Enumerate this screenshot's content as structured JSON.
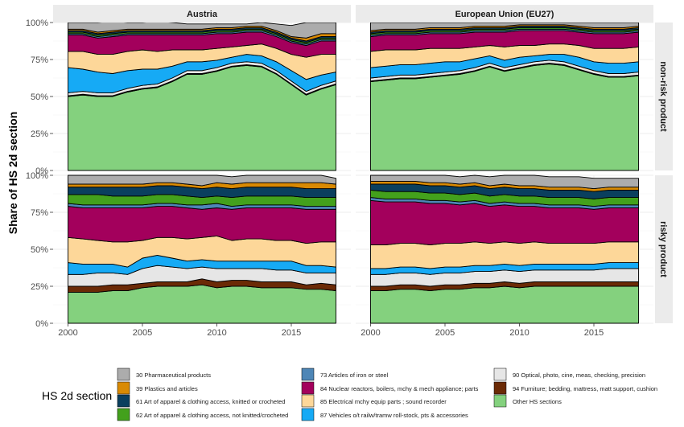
{
  "chart_data": {
    "type": "area",
    "stacked": true,
    "normalized": true,
    "ylabel": "Share of HS 2d section",
    "xlabel": "",
    "xlim": [
      1999,
      2019
    ],
    "ylim": [
      0,
      1
    ],
    "x_ticks": [
      2000,
      2005,
      2010,
      2015
    ],
    "y_ticks": [
      "0%",
      "25%",
      "50%",
      "75%",
      "100%"
    ],
    "grid": true,
    "facet_columns": [
      "Austria",
      "European Union (EU27)"
    ],
    "facet_rows": [
      "non-risk product",
      "risky product"
    ],
    "years": [
      2000,
      2001,
      2002,
      2003,
      2004,
      2005,
      2006,
      2007,
      2008,
      2009,
      2010,
      2011,
      2012,
      2013,
      2014,
      2015,
      2016,
      2017,
      2018
    ],
    "legend": {
      "title": "HS 2d section",
      "position": "bottom",
      "items": [
        {
          "key": "other",
          "label": "Other HS sections",
          "color": "#84D17E"
        },
        {
          "key": "hs94",
          "label": "94 Furniture; bedding, mattress, matt support, cushion",
          "color": "#6B2A06"
        },
        {
          "key": "hs90",
          "label": "90 Optical, photo, cine, meas, checking, precision",
          "color": "#E6E6E6"
        },
        {
          "key": "hs87",
          "label": "87 Vehicles o/t railw/tramw roll-stock, pts & accessories",
          "color": "#16AAF5"
        },
        {
          "key": "hs85",
          "label": "85 Electrical mchy equip parts ; sound recorder",
          "color": "#FDD799"
        },
        {
          "key": "hs84",
          "label": "84 Nuclear reactors, boilers, mchy & mech appliance; parts",
          "color": "#A3005C"
        },
        {
          "key": "hs73",
          "label": "73 Articles of iron or steel",
          "color": "#4E86B6"
        },
        {
          "key": "hs62",
          "label": "62 Art of apparel & clothing access, not knitted/crocheted",
          "color": "#43A11C"
        },
        {
          "key": "hs61",
          "label": "61 Art of apparel & clothing access, knitted or crocheted",
          "color": "#0A3F5E"
        },
        {
          "key": "hs39",
          "label": "39 Plastics and articles",
          "color": "#D98A03"
        },
        {
          "key": "hs30",
          "label": "30 Pharmaceutical products",
          "color": "#ACACAC"
        }
      ],
      "display_order": [
        "hs30",
        "hs39",
        "hs61",
        "hs62",
        "hs73",
        "hs84",
        "hs85",
        "hs87",
        "hs90",
        "hs94",
        "other"
      ]
    },
    "panels": [
      {
        "country": "Austria",
        "row": "non-risk product",
        "series": {
          "other": [
            0.5,
            0.51,
            0.5,
            0.5,
            0.53,
            0.55,
            0.56,
            0.6,
            0.65,
            0.65,
            0.67,
            0.7,
            0.71,
            0.7,
            0.65,
            0.58,
            0.51,
            0.55,
            0.58
          ],
          "hs94": [
            0.005,
            0.005,
            0.005,
            0.005,
            0.005,
            0.005,
            0.005,
            0.005,
            0.005,
            0.005,
            0.005,
            0.005,
            0.005,
            0.005,
            0.005,
            0.005,
            0.005,
            0.005,
            0.005
          ],
          "hs90": [
            0.02,
            0.02,
            0.02,
            0.02,
            0.02,
            0.02,
            0.02,
            0.02,
            0.02,
            0.02,
            0.02,
            0.02,
            0.02,
            0.02,
            0.02,
            0.02,
            0.02,
            0.02,
            0.02
          ],
          "hs87": [
            0.17,
            0.15,
            0.14,
            0.13,
            0.12,
            0.11,
            0.1,
            0.08,
            0.06,
            0.06,
            0.05,
            0.04,
            0.05,
            0.05,
            0.06,
            0.07,
            0.08,
            0.07,
            0.06
          ],
          "hs85": [
            0.11,
            0.12,
            0.12,
            0.13,
            0.13,
            0.13,
            0.12,
            0.11,
            0.08,
            0.08,
            0.08,
            0.07,
            0.06,
            0.08,
            0.09,
            0.11,
            0.15,
            0.14,
            0.12
          ],
          "hs84": [
            0.11,
            0.11,
            0.11,
            0.12,
            0.11,
            0.1,
            0.11,
            0.1,
            0.1,
            0.1,
            0.1,
            0.09,
            0.09,
            0.08,
            0.08,
            0.08,
            0.08,
            0.09,
            0.09
          ],
          "hs73": [
            0.01,
            0.01,
            0.01,
            0.01,
            0.01,
            0.01,
            0.01,
            0.01,
            0.01,
            0.01,
            0.01,
            0.01,
            0.01,
            0.01,
            0.01,
            0.01,
            0.01,
            0.01,
            0.01
          ],
          "hs62": [
            0.01,
            0.01,
            0.01,
            0.01,
            0.01,
            0.01,
            0.01,
            0.01,
            0.01,
            0.01,
            0.01,
            0.01,
            0.01,
            0.01,
            0.01,
            0.01,
            0.01,
            0.01,
            0.01
          ],
          "hs61": [
            0.01,
            0.01,
            0.01,
            0.01,
            0.01,
            0.01,
            0.01,
            0.01,
            0.01,
            0.01,
            0.01,
            0.01,
            0.01,
            0.01,
            0.01,
            0.01,
            0.01,
            0.01,
            0.01
          ],
          "hs39": [
            0.01,
            0.01,
            0.01,
            0.01,
            0.01,
            0.01,
            0.01,
            0.01,
            0.01,
            0.01,
            0.01,
            0.01,
            0.01,
            0.01,
            0.01,
            0.01,
            0.02,
            0.02,
            0.02
          ],
          "hs30": [
            0.045,
            0.045,
            0.065,
            0.065,
            0.045,
            0.045,
            0.055,
            0.045,
            0.035,
            0.035,
            0.025,
            0.025,
            0.015,
            0.025,
            0.045,
            0.075,
            0.105,
            0.075,
            0.075
          ]
        }
      },
      {
        "country": "European Union (EU27)",
        "row": "non-risk product",
        "series": {
          "other": [
            0.6,
            0.61,
            0.62,
            0.62,
            0.63,
            0.64,
            0.65,
            0.67,
            0.7,
            0.67,
            0.69,
            0.71,
            0.72,
            0.71,
            0.68,
            0.65,
            0.63,
            0.63,
            0.64
          ],
          "hs94": [
            0.005,
            0.005,
            0.005,
            0.005,
            0.005,
            0.005,
            0.005,
            0.005,
            0.005,
            0.005,
            0.005,
            0.005,
            0.005,
            0.005,
            0.005,
            0.005,
            0.005,
            0.005,
            0.005
          ],
          "hs90": [
            0.02,
            0.02,
            0.02,
            0.02,
            0.02,
            0.02,
            0.02,
            0.02,
            0.02,
            0.02,
            0.02,
            0.02,
            0.02,
            0.02,
            0.02,
            0.02,
            0.02,
            0.02,
            0.02
          ],
          "hs87": [
            0.07,
            0.07,
            0.07,
            0.07,
            0.07,
            0.07,
            0.06,
            0.06,
            0.05,
            0.05,
            0.05,
            0.04,
            0.04,
            0.05,
            0.06,
            0.06,
            0.07,
            0.07,
            0.07
          ],
          "hs85": [
            0.11,
            0.11,
            0.1,
            0.1,
            0.1,
            0.09,
            0.09,
            0.08,
            0.07,
            0.09,
            0.08,
            0.07,
            0.07,
            0.07,
            0.08,
            0.09,
            0.1,
            0.1,
            0.1
          ],
          "hs84": [
            0.1,
            0.1,
            0.1,
            0.1,
            0.1,
            0.1,
            0.1,
            0.1,
            0.09,
            0.1,
            0.1,
            0.1,
            0.09,
            0.09,
            0.09,
            0.1,
            0.1,
            0.1,
            0.1
          ],
          "hs73": [
            0.01,
            0.01,
            0.01,
            0.01,
            0.01,
            0.01,
            0.01,
            0.01,
            0.01,
            0.01,
            0.01,
            0.01,
            0.01,
            0.01,
            0.01,
            0.01,
            0.01,
            0.01,
            0.01
          ],
          "hs62": [
            0.01,
            0.01,
            0.01,
            0.01,
            0.01,
            0.01,
            0.01,
            0.01,
            0.01,
            0.01,
            0.01,
            0.01,
            0.01,
            0.01,
            0.01,
            0.01,
            0.01,
            0.01,
            0.01
          ],
          "hs61": [
            0.01,
            0.01,
            0.01,
            0.01,
            0.01,
            0.01,
            0.01,
            0.01,
            0.01,
            0.01,
            0.01,
            0.01,
            0.01,
            0.01,
            0.01,
            0.01,
            0.01,
            0.01,
            0.01
          ],
          "hs39": [
            0.01,
            0.01,
            0.01,
            0.01,
            0.01,
            0.01,
            0.01,
            0.01,
            0.01,
            0.01,
            0.01,
            0.01,
            0.01,
            0.01,
            0.01,
            0.01,
            0.01,
            0.01,
            0.01
          ],
          "hs30": [
            0.055,
            0.045,
            0.045,
            0.045,
            0.035,
            0.035,
            0.035,
            0.025,
            0.025,
            0.025,
            0.015,
            0.015,
            0.015,
            0.015,
            0.025,
            0.035,
            0.035,
            0.035,
            0.025
          ]
        }
      },
      {
        "country": "Austria",
        "row": "risky product",
        "series": {
          "other": [
            0.21,
            0.21,
            0.21,
            0.22,
            0.22,
            0.24,
            0.25,
            0.25,
            0.25,
            0.26,
            0.24,
            0.25,
            0.25,
            0.24,
            0.24,
            0.24,
            0.23,
            0.23,
            0.22
          ],
          "hs94": [
            0.04,
            0.04,
            0.04,
            0.04,
            0.04,
            0.03,
            0.03,
            0.03,
            0.03,
            0.04,
            0.04,
            0.04,
            0.04,
            0.04,
            0.04,
            0.04,
            0.03,
            0.04,
            0.04
          ],
          "hs90": [
            0.08,
            0.08,
            0.09,
            0.08,
            0.07,
            0.1,
            0.11,
            0.1,
            0.09,
            0.08,
            0.09,
            0.08,
            0.08,
            0.09,
            0.08,
            0.08,
            0.08,
            0.07,
            0.08
          ],
          "hs87": [
            0.08,
            0.07,
            0.06,
            0.06,
            0.05,
            0.07,
            0.07,
            0.06,
            0.05,
            0.05,
            0.05,
            0.05,
            0.05,
            0.05,
            0.06,
            0.06,
            0.05,
            0.05,
            0.04
          ],
          "hs85": [
            0.17,
            0.17,
            0.16,
            0.15,
            0.17,
            0.12,
            0.12,
            0.14,
            0.15,
            0.15,
            0.17,
            0.14,
            0.15,
            0.15,
            0.14,
            0.14,
            0.15,
            0.16,
            0.17
          ],
          "hs84": [
            0.21,
            0.21,
            0.22,
            0.23,
            0.23,
            0.22,
            0.21,
            0.21,
            0.21,
            0.19,
            0.19,
            0.21,
            0.21,
            0.21,
            0.22,
            0.22,
            0.23,
            0.22,
            0.22
          ],
          "hs73": [
            0.02,
            0.02,
            0.02,
            0.02,
            0.02,
            0.02,
            0.02,
            0.02,
            0.02,
            0.03,
            0.03,
            0.02,
            0.02,
            0.02,
            0.02,
            0.02,
            0.02,
            0.02,
            0.02
          ],
          "hs62": [
            0.06,
            0.07,
            0.07,
            0.06,
            0.06,
            0.06,
            0.06,
            0.06,
            0.06,
            0.05,
            0.05,
            0.06,
            0.06,
            0.06,
            0.06,
            0.06,
            0.06,
            0.06,
            0.06
          ],
          "hs61": [
            0.05,
            0.05,
            0.05,
            0.06,
            0.06,
            0.06,
            0.06,
            0.06,
            0.06,
            0.06,
            0.06,
            0.06,
            0.06,
            0.06,
            0.06,
            0.06,
            0.06,
            0.06,
            0.06
          ],
          "hs39": [
            0.02,
            0.02,
            0.02,
            0.02,
            0.02,
            0.02,
            0.02,
            0.02,
            0.02,
            0.02,
            0.03,
            0.03,
            0.03,
            0.03,
            0.03,
            0.03,
            0.04,
            0.04,
            0.03
          ],
          "hs30": [
            0.06,
            0.06,
            0.06,
            0.06,
            0.06,
            0.06,
            0.05,
            0.05,
            0.06,
            0.07,
            0.05,
            0.05,
            0.05,
            0.05,
            0.05,
            0.05,
            0.05,
            0.05,
            0.04
          ]
        }
      },
      {
        "country": "European Union (EU27)",
        "row": "risky product",
        "series": {
          "other": [
            0.22,
            0.22,
            0.23,
            0.23,
            0.22,
            0.23,
            0.23,
            0.24,
            0.24,
            0.25,
            0.24,
            0.25,
            0.25,
            0.25,
            0.25,
            0.25,
            0.25,
            0.25,
            0.25
          ],
          "hs94": [
            0.03,
            0.03,
            0.03,
            0.03,
            0.03,
            0.03,
            0.03,
            0.03,
            0.03,
            0.03,
            0.03,
            0.03,
            0.03,
            0.03,
            0.03,
            0.03,
            0.03,
            0.03,
            0.03
          ],
          "hs90": [
            0.08,
            0.08,
            0.08,
            0.08,
            0.08,
            0.08,
            0.08,
            0.08,
            0.08,
            0.08,
            0.08,
            0.08,
            0.08,
            0.08,
            0.08,
            0.08,
            0.09,
            0.09,
            0.09
          ],
          "hs87": [
            0.04,
            0.04,
            0.04,
            0.04,
            0.04,
            0.04,
            0.04,
            0.04,
            0.04,
            0.04,
            0.04,
            0.04,
            0.04,
            0.04,
            0.04,
            0.04,
            0.04,
            0.04,
            0.04
          ],
          "hs85": [
            0.16,
            0.16,
            0.16,
            0.16,
            0.16,
            0.16,
            0.16,
            0.16,
            0.15,
            0.15,
            0.15,
            0.15,
            0.14,
            0.14,
            0.14,
            0.14,
            0.14,
            0.14,
            0.14
          ],
          "hs84": [
            0.3,
            0.29,
            0.28,
            0.28,
            0.28,
            0.27,
            0.26,
            0.26,
            0.25,
            0.25,
            0.25,
            0.24,
            0.24,
            0.24,
            0.24,
            0.23,
            0.23,
            0.23,
            0.23
          ],
          "hs73": [
            0.02,
            0.02,
            0.02,
            0.02,
            0.02,
            0.02,
            0.02,
            0.02,
            0.02,
            0.02,
            0.02,
            0.02,
            0.02,
            0.02,
            0.02,
            0.02,
            0.02,
            0.02,
            0.02
          ],
          "hs62": [
            0.05,
            0.05,
            0.05,
            0.05,
            0.05,
            0.05,
            0.05,
            0.05,
            0.05,
            0.05,
            0.05,
            0.05,
            0.05,
            0.05,
            0.05,
            0.05,
            0.05,
            0.05,
            0.05
          ],
          "hs61": [
            0.04,
            0.05,
            0.05,
            0.05,
            0.05,
            0.05,
            0.05,
            0.05,
            0.05,
            0.05,
            0.05,
            0.05,
            0.05,
            0.05,
            0.05,
            0.05,
            0.05,
            0.05,
            0.05
          ],
          "hs39": [
            0.02,
            0.02,
            0.02,
            0.02,
            0.02,
            0.02,
            0.02,
            0.02,
            0.02,
            0.02,
            0.02,
            0.02,
            0.02,
            0.02,
            0.02,
            0.02,
            0.02,
            0.02,
            0.02
          ],
          "hs30": [
            0.04,
            0.04,
            0.04,
            0.04,
            0.05,
            0.05,
            0.05,
            0.05,
            0.06,
            0.06,
            0.07,
            0.07,
            0.07,
            0.07,
            0.07,
            0.07,
            0.06,
            0.06,
            0.06
          ]
        }
      }
    ]
  }
}
